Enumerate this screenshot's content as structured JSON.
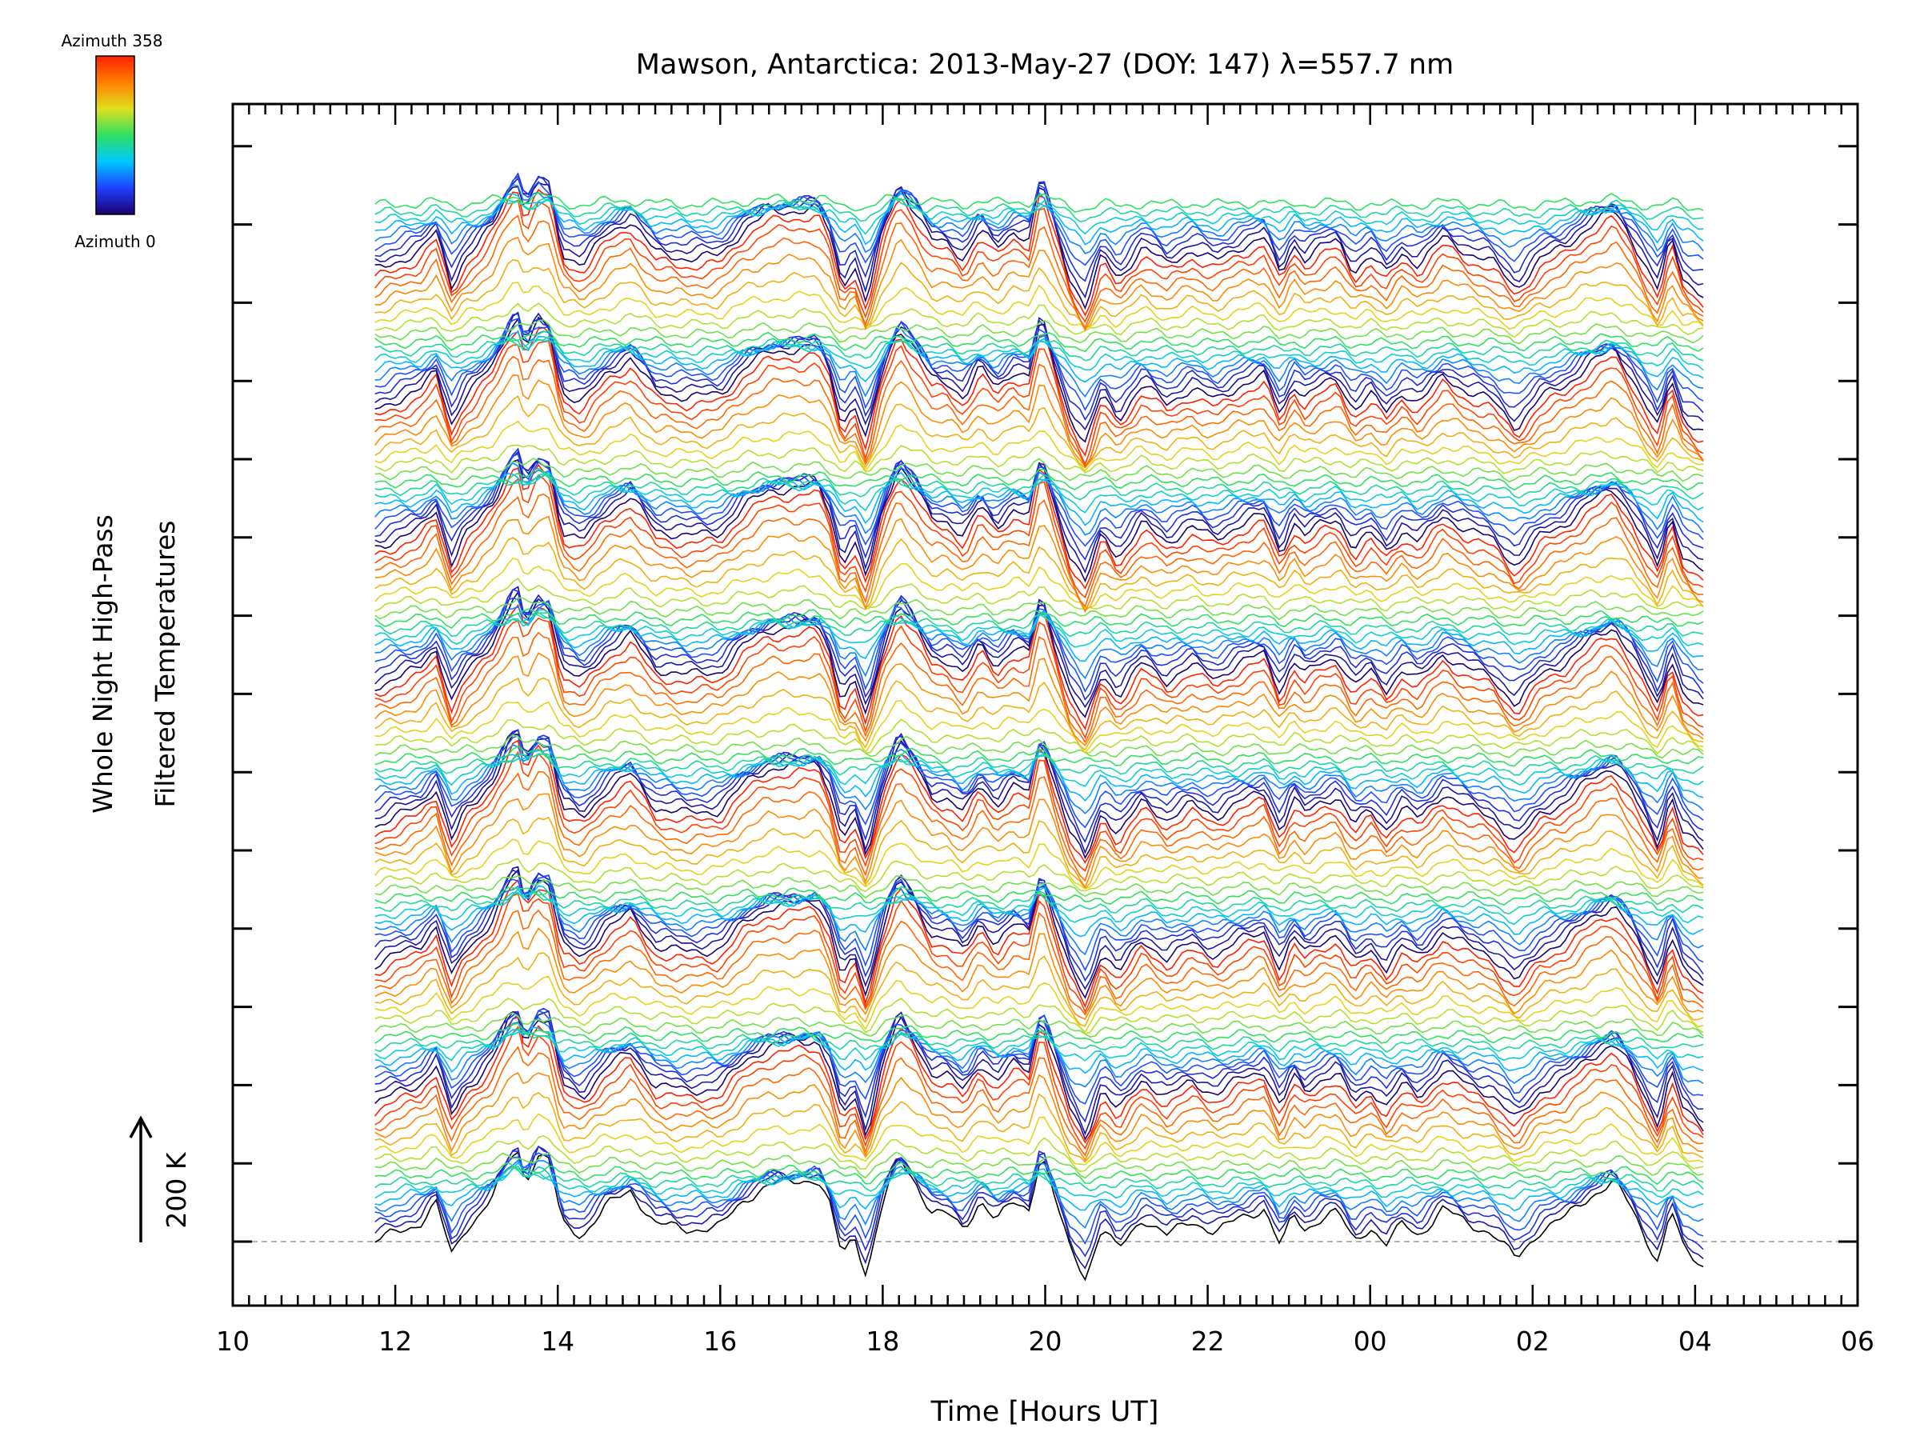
{
  "chart_data": {
    "type": "line",
    "title": "Mawson, Antarctica: 2013-May-27 (DOY: 147) λ=557.7 nm",
    "xlabel": "Time [Hours UT]",
    "ylabel_line1": "Whole Night High-Pass",
    "ylabel_line2": "Filtered Temperatures",
    "scale_label": "200 K",
    "colorbar": {
      "top_label": "Azimuth 358",
      "bottom_label": "Azimuth 0",
      "stops": [
        "#1a006e",
        "#2040ff",
        "#00c8ff",
        "#30e060",
        "#e0e020",
        "#ff8000",
        "#ff2000"
      ]
    },
    "x_range_hours": [
      10,
      30
    ],
    "x_ticks": [
      "10",
      "12",
      "14",
      "16",
      "18",
      "20",
      "22",
      "00",
      "02",
      "04",
      "06"
    ],
    "data_x_range_hours": [
      11.75,
      28.1
    ],
    "series_count": 128,
    "series_color_by": "azimuth, 0 to 358 degrees, colour cycling every 17 traces",
    "baseline_style": "dashed gray",
    "grid": false,
    "reference_profile": {
      "time_hours": [
        11.75,
        12.0,
        12.3,
        12.5,
        12.7,
        12.85,
        13.0,
        13.2,
        13.4,
        13.5,
        13.6,
        13.75,
        13.9,
        14.05,
        14.3,
        14.6,
        14.9,
        15.2,
        15.6,
        16.0,
        16.3,
        16.6,
        16.9,
        17.2,
        17.35,
        17.5,
        17.65,
        17.8,
        18.0,
        18.2,
        18.4,
        18.6,
        18.8,
        19.0,
        19.2,
        19.4,
        19.6,
        19.8,
        19.95,
        20.1,
        20.3,
        20.5,
        20.7,
        20.9,
        21.2,
        21.5,
        21.8,
        22.1,
        22.4,
        22.7,
        22.9,
        23.05,
        23.2,
        23.4,
        23.6,
        23.8,
        24.0,
        24.2,
        24.4,
        24.6,
        24.9,
        25.2,
        25.5,
        25.8,
        26.1,
        26.4,
        26.7,
        27.0,
        27.2,
        27.4,
        27.55,
        27.7,
        27.85,
        28.0,
        28.1
      ],
      "relative_temperature_K": [
        0,
        15,
        30,
        65,
        -25,
        20,
        40,
        75,
        135,
        155,
        100,
        145,
        135,
        30,
        10,
        60,
        85,
        30,
        20,
        25,
        70,
        95,
        100,
        105,
        60,
        -25,
        10,
        -55,
        65,
        140,
        100,
        50,
        45,
        20,
        70,
        35,
        65,
        55,
        150,
        80,
        -10,
        -60,
        25,
        -15,
        40,
        10,
        35,
        15,
        40,
        55,
        -10,
        45,
        20,
        40,
        50,
        0,
        25,
        -5,
        30,
        10,
        55,
        30,
        15,
        -30,
        20,
        40,
        75,
        100,
        60,
        5,
        -35,
        55,
        -10,
        -30,
        -40
      ]
    }
  }
}
